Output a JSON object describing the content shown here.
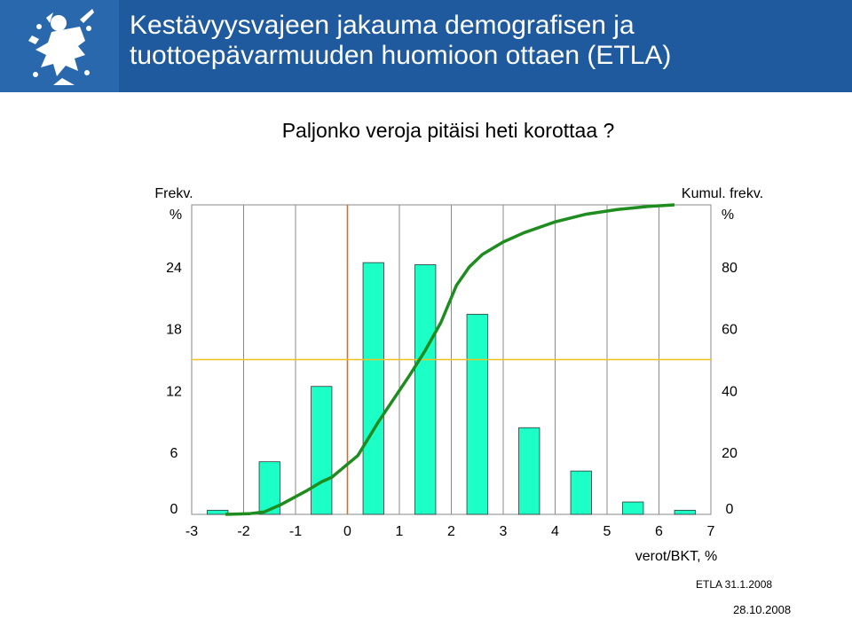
{
  "header": {
    "title_line1": "Kestävyysvajeen jakauma demografisen ja",
    "title_line2": "tuottoepävarmuuden huomioon ottaen (ETLA)",
    "logo_icon": "lion-coat-of-arms-icon",
    "background": "#1f5a9e"
  },
  "chart_data": {
    "type": "bar",
    "title": "Paljonko veroja pitäisi heti korottaa ?",
    "left_axis_label_line1": "Frekv.",
    "left_axis_label_line2": "%",
    "right_axis_label_line1": "Kumul. frekv.",
    "right_axis_label_line2": "%",
    "xlabel": "verot/BKT, %",
    "xlim": [
      -3,
      7
    ],
    "ylim_left": [
      0,
      30
    ],
    "ylim_right": [
      0,
      100
    ],
    "x_ticks": [
      "-3",
      "-2",
      "-1",
      "0",
      "1",
      "2",
      "3",
      "4",
      "5",
      "6",
      "7"
    ],
    "y_ticks_left": [
      "0",
      "6",
      "12",
      "18",
      "24"
    ],
    "y_ticks_right": [
      "0",
      "20",
      "40",
      "60",
      "80"
    ],
    "bars": {
      "x": [
        -2.5,
        -1.5,
        -0.5,
        0.5,
        1.5,
        2.5,
        3.5,
        4.5,
        5.5,
        6.5
      ],
      "values": [
        0.4,
        5.1,
        12.4,
        24.4,
        24.2,
        19.4,
        8.4,
        4.2,
        1.2,
        0.4
      ],
      "color": "#1cffc6"
    },
    "cumulative": {
      "x": [
        -2.35,
        -1.9,
        -1.6,
        -1.3,
        -0.8,
        -0.5,
        -0.3,
        0.2,
        0.6,
        1.0,
        1.2,
        1.5,
        1.8,
        2.1,
        2.35,
        2.6,
        3.0,
        3.4,
        4.0,
        4.6,
        5.2,
        5.8,
        6.3
      ],
      "values": [
        0,
        0.2,
        0.8,
        3,
        7.5,
        10.5,
        12,
        19,
        30,
        40,
        45,
        53,
        62,
        74,
        80,
        84,
        88,
        91,
        94.5,
        97,
        98.5,
        99.5,
        100
      ],
      "color": "#1e8c1e"
    },
    "vertical_reference_x": 0,
    "vertical_reference_color": "#e0691e",
    "horizontal_reference_y_right": 50,
    "horizontal_reference_color": "#f0c020",
    "grid": true
  },
  "footer": {
    "credit": "ETLA 31.1.2008",
    "date": "28.10.2008"
  }
}
